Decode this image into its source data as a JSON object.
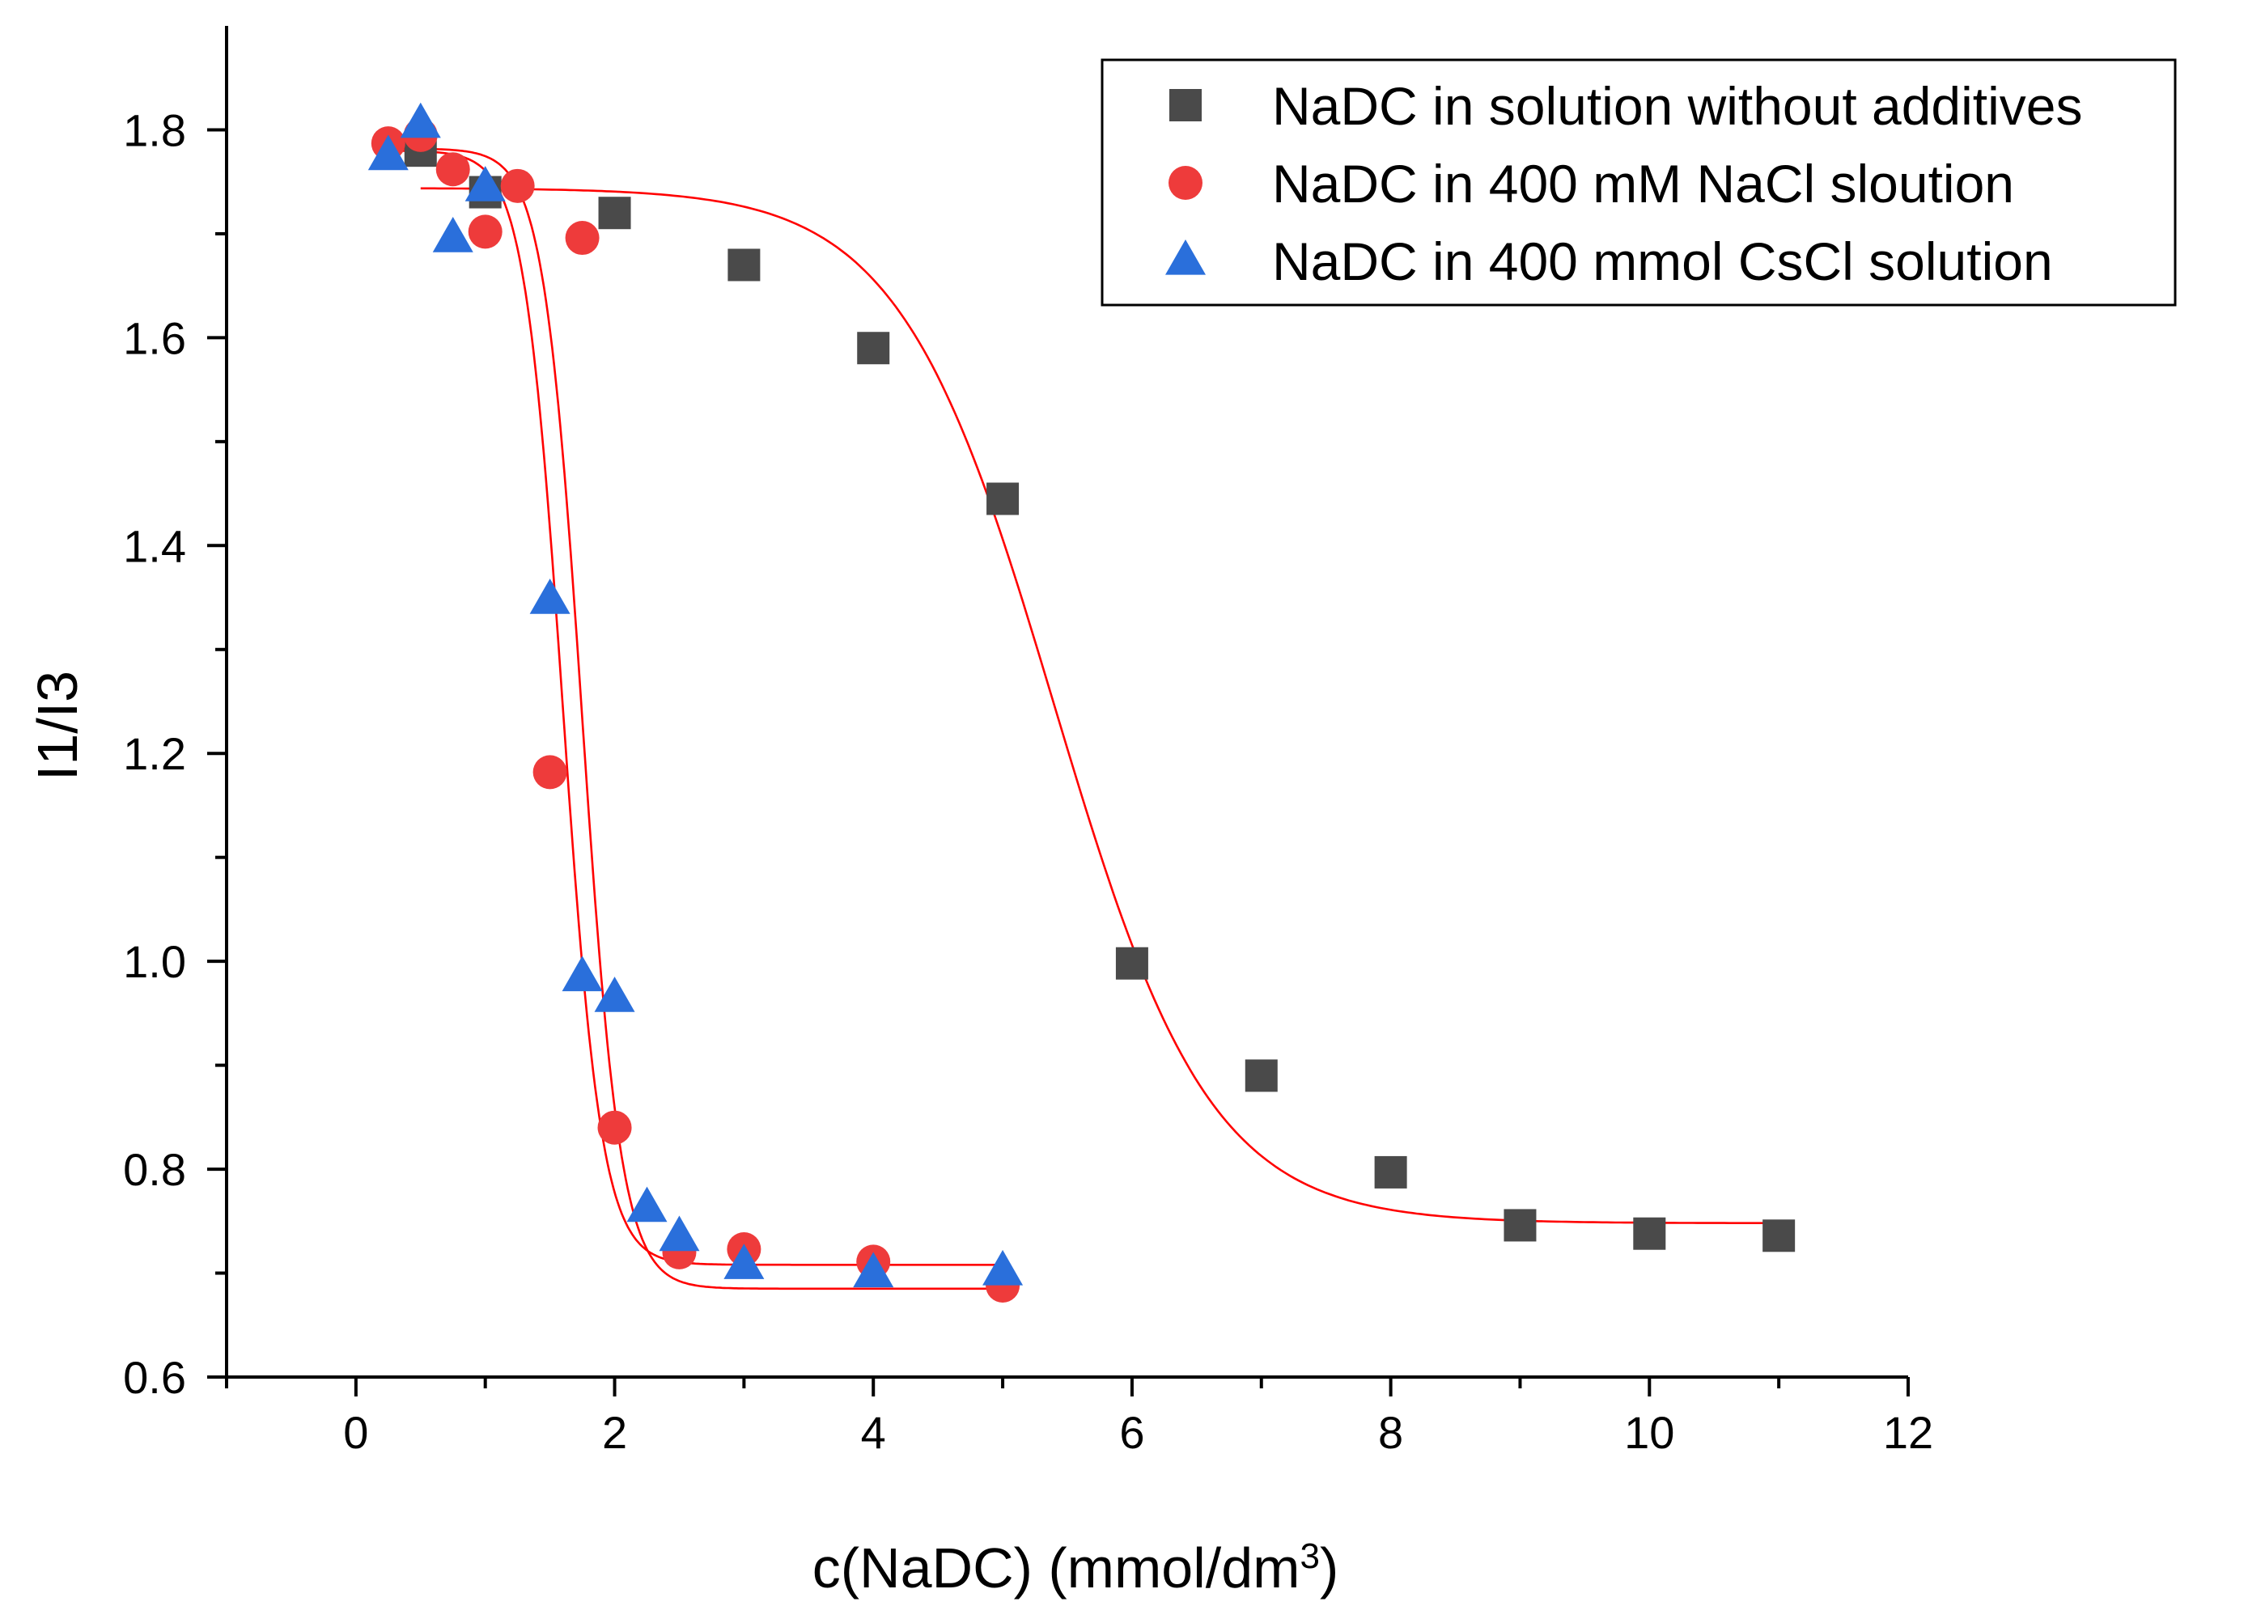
{
  "chart_data": {
    "type": "scatter",
    "title": "",
    "xlabel_main": "c(NaDC) (mmol/dm",
    "xlabel_sup": "3",
    "xlabel_close": ")",
    "ylabel": "I1/I3",
    "xlim": [
      -1,
      12
    ],
    "ylim": [
      0.6,
      1.9
    ],
    "x_ticks": [
      0,
      2,
      4,
      6,
      8,
      10,
      12
    ],
    "x_tick_labels": [
      "0",
      "2",
      "4",
      "6",
      "8",
      "10",
      "12"
    ],
    "x_minor_ticks": [
      -1,
      1,
      3,
      5,
      7,
      9,
      11
    ],
    "y_ticks": [
      0.6,
      0.8,
      1.0,
      1.2,
      1.4,
      1.6,
      1.8
    ],
    "y_tick_labels": [
      "0.6",
      "0.8",
      "1.0",
      "1.2",
      "1.4",
      "1.6",
      "1.8"
    ],
    "y_minor_ticks": [
      0.7,
      0.9,
      1.1,
      1.3,
      1.5,
      1.7
    ],
    "legend_position": "top-right",
    "fit_color": "#ff0000",
    "series": [
      {
        "name": "NaDC in solution without additives",
        "marker": "square",
        "color": "#4a4a4a",
        "x": [
          0.5,
          1,
          2,
          3,
          4,
          5,
          6,
          7,
          8,
          9,
          10,
          11
        ],
        "y": [
          1.78,
          1.74,
          1.72,
          1.67,
          1.59,
          1.445,
          0.998,
          0.89,
          0.797,
          0.746,
          0.738,
          0.736
        ],
        "fit": {
          "A1": 1.744,
          "A2": 0.748,
          "x0": 5.4,
          "dx": 0.6,
          "x_start": 0.5,
          "x_end": 11
        }
      },
      {
        "name": "NaDC in 400 mM NaCl sloution",
        "marker": "circle",
        "color": "#ee3b3b",
        "x": [
          0.25,
          0.5,
          0.75,
          1,
          1.25,
          1.5,
          1.75,
          2,
          2.5,
          3,
          4,
          5
        ],
        "y": [
          1.787,
          1.795,
          1.762,
          1.702,
          1.746,
          1.182,
          1.696,
          0.84,
          0.72,
          0.723,
          0.711,
          0.688
        ],
        "fit": {
          "A1": 1.78,
          "A2": 0.708,
          "x0": 1.6,
          "dx": 0.15,
          "x_start": 0.25,
          "x_end": 5
        }
      },
      {
        "name": "NaDC in 400 mmol CsCl solution",
        "marker": "triangle",
        "color": "#2a6fdb",
        "x": [
          0.25,
          0.5,
          0.75,
          1,
          1.5,
          1.75,
          2,
          2.25,
          2.5,
          3,
          4,
          5
        ],
        "y": [
          1.775,
          1.806,
          1.696,
          1.745,
          1.348,
          0.985,
          0.965,
          0.763,
          0.735,
          0.708,
          0.7,
          0.702
        ],
        "fit": {
          "A1": 1.782,
          "A2": 0.685,
          "x0": 1.75,
          "dx": 0.15,
          "x_start": 0.25,
          "x_end": 5
        }
      }
    ]
  }
}
